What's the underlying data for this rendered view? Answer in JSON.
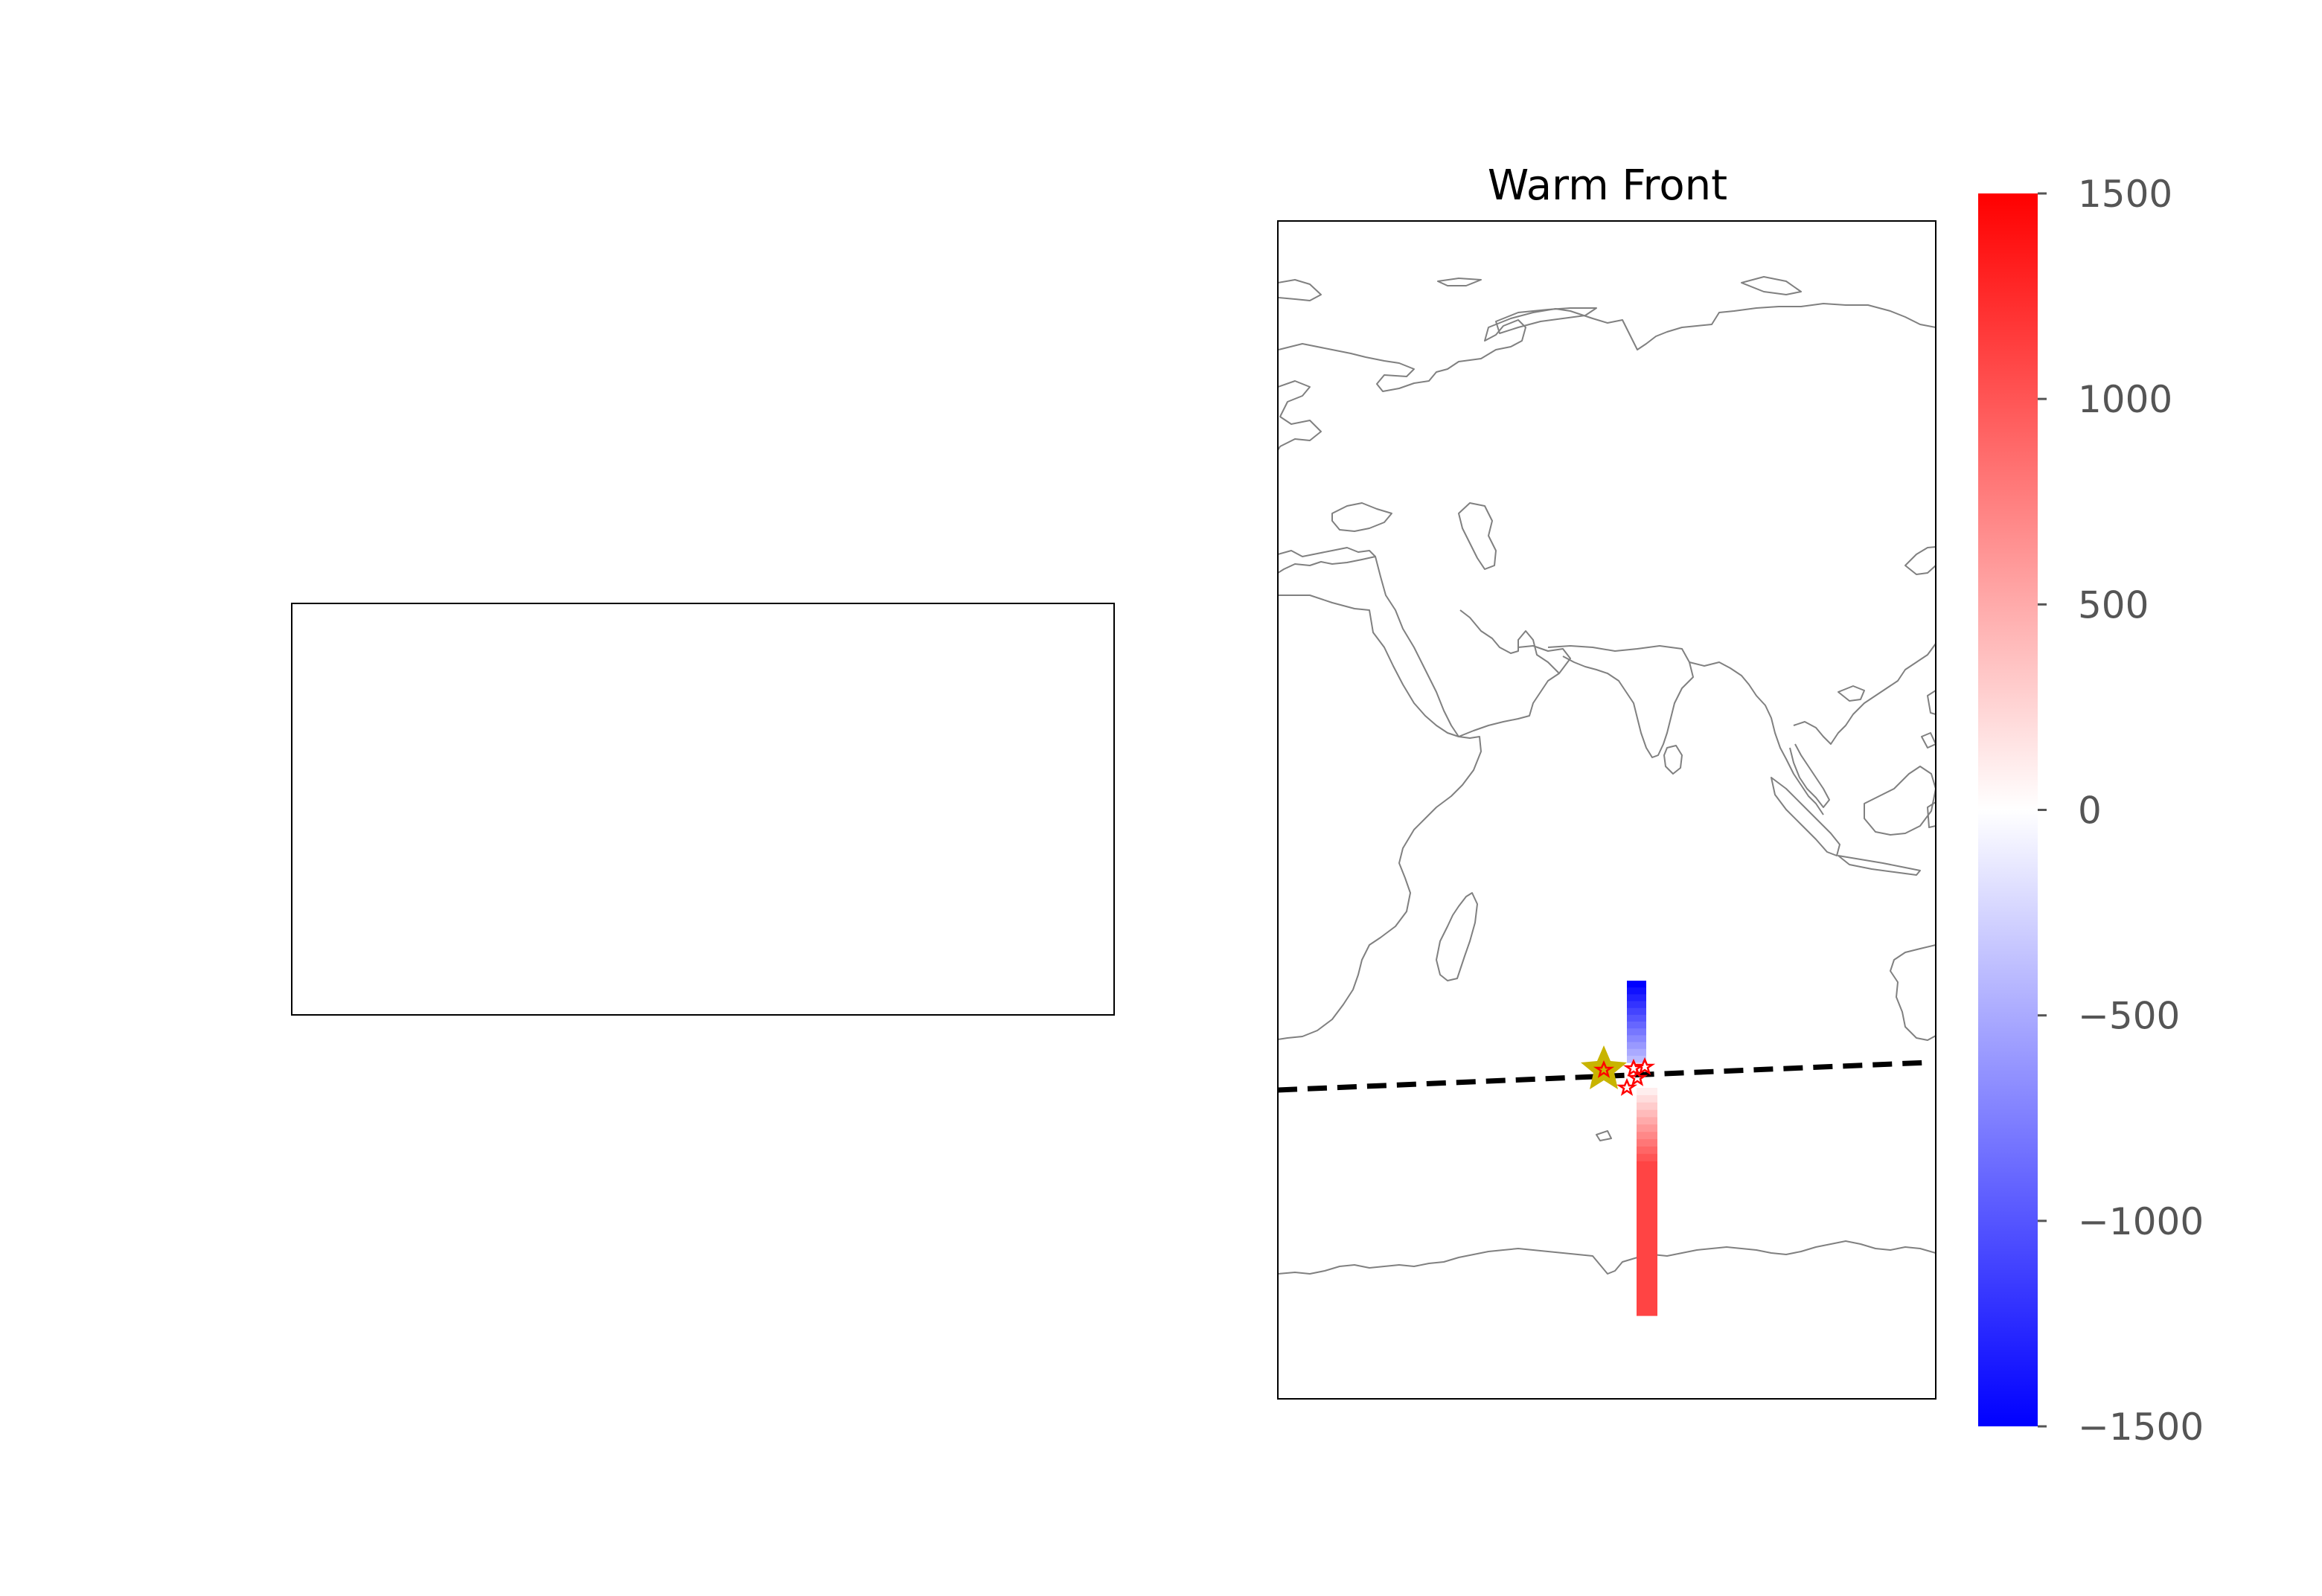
{
  "figure": {
    "title": "Warm Front"
  },
  "colorbar": {
    "min": -1500,
    "max": 1500,
    "colormap": "bwr",
    "low_color": "#0000ff",
    "mid_color": "#ffffff",
    "high_color": "#ff0000",
    "ticks": [
      {
        "value": 1500,
        "label": "1500"
      },
      {
        "value": 1000,
        "label": "1000"
      },
      {
        "value": 500,
        "label": "500"
      },
      {
        "value": 0,
        "label": "0"
      },
      {
        "value": -500,
        "label": "−500"
      },
      {
        "value": -1000,
        "label": "−1000"
      },
      {
        "value": -1500,
        "label": "−1500"
      }
    ]
  },
  "map": {
    "coastline_color": "#808080",
    "front_line_color": "#000000",
    "front_line_style": "dashed",
    "origin_marker_color": "#c8b400",
    "point_marker_color": "#ff0000",
    "blue_strip_values": [
      -1500,
      -1400,
      -1300,
      -1200,
      -1100,
      -1000,
      -900,
      -800,
      -700,
      -600,
      -500,
      -400
    ],
    "red_strip_values": [
      100,
      200,
      300,
      400,
      500,
      600,
      700,
      800,
      900,
      1000,
      1100,
      1100,
      1100,
      1100,
      1100,
      1100,
      1100,
      1100,
      1100,
      1100,
      1100,
      1100,
      1100,
      1100,
      1100,
      1100,
      1100,
      1100,
      1100,
      1100,
      1100
    ]
  }
}
